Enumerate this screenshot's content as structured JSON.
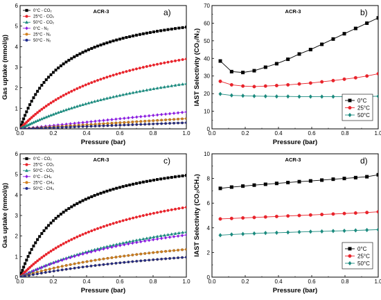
{
  "chart_data": [
    {
      "panel": "a)",
      "type": "scatter",
      "title": "ACR-3",
      "xlabel": "Pressure (bar)",
      "ylabel": "Gas uptake (mmol/g)",
      "xlim": [
        0,
        1
      ],
      "ylim": [
        0,
        6
      ],
      "xticks": [
        "0.0",
        "0.2",
        "0.4",
        "0.6",
        "0.8",
        "1.0"
      ],
      "yticks": [
        "0",
        "1",
        "2",
        "3",
        "4",
        "5",
        "6"
      ],
      "legend_position": "top-left",
      "series": [
        {
          "name": "0°C - CO₂",
          "color": "#000000",
          "marker": "square",
          "model": "langmuir",
          "end_value": 4.95,
          "k": 4.0
        },
        {
          "name": "25°C - CO₂",
          "color": "#e8232b",
          "marker": "circle",
          "model": "langmuir",
          "end_value": 3.4,
          "k": 1.6
        },
        {
          "name": "50°C - CO₂",
          "color": "#1a8a7e",
          "marker": "triangle",
          "model": "langmuir",
          "end_value": 2.2,
          "k": 0.9
        },
        {
          "name": "0°C - N₂",
          "color": "#8a1ce0",
          "marker": "diamond",
          "model": "linear",
          "end_value": 0.82
        },
        {
          "name": "25°C - N₂",
          "color": "#d2801e",
          "marker": "circle",
          "model": "linear",
          "end_value": 0.5
        },
        {
          "name": "50°C - N₂",
          "color": "#1f2a8c",
          "marker": "circle",
          "model": "linear",
          "end_value": 0.3
        }
      ]
    },
    {
      "panel": "b)",
      "type": "line",
      "title": "ACR-3",
      "xlabel": "Pressure (bar)",
      "ylabel": "IAST Selectivity (CO₂/N₂)",
      "xlim": [
        0,
        1
      ],
      "ylim": [
        0,
        70
      ],
      "xticks": [
        "0.0",
        "0.2",
        "0.4",
        "0.6",
        "0.8",
        "1.0"
      ],
      "yticks": [
        "0",
        "10",
        "20",
        "30",
        "40",
        "50",
        "60",
        "70"
      ],
      "legend_position": "bottom-right",
      "x": [
        0.05,
        0.118,
        0.186,
        0.254,
        0.322,
        0.389,
        0.457,
        0.525,
        0.593,
        0.661,
        0.729,
        0.796,
        0.864,
        0.932,
        1.0
      ],
      "series": [
        {
          "name": "0°C",
          "color": "#000000",
          "marker": "square",
          "values": [
            38.5,
            32.5,
            32.0,
            33.0,
            35.0,
            37.0,
            39.5,
            42.5,
            45.0,
            48.0,
            51.0,
            54.0,
            57.0,
            60.0,
            63.0
          ]
        },
        {
          "name": "25°C",
          "color": "#e8232b",
          "marker": "circle",
          "values": [
            27.0,
            25.0,
            24.3,
            24.0,
            24.3,
            24.6,
            25.0,
            25.5,
            26.0,
            26.7,
            27.4,
            28.2,
            29.0,
            30.0,
            31.3
          ]
        },
        {
          "name": "50°C",
          "color": "#1a8a7e",
          "marker": "diamond",
          "values": [
            19.8,
            19.0,
            18.8,
            18.6,
            18.5,
            18.4,
            18.4,
            18.3,
            18.3,
            18.3,
            18.3,
            18.3,
            18.3,
            18.4,
            18.5
          ]
        }
      ]
    },
    {
      "panel": "c)",
      "type": "scatter",
      "title": "ACR-3",
      "xlabel": "Pressure (bar)",
      "ylabel": "Gas uptake (mmol/g)",
      "xlim": [
        0,
        1
      ],
      "ylim": [
        0,
        6
      ],
      "xticks": [
        "0.0",
        "0.2",
        "0.4",
        "0.6",
        "0.8",
        "1.0"
      ],
      "yticks": [
        "0",
        "1",
        "2",
        "3",
        "4",
        "5",
        "6"
      ],
      "legend_position": "top-left",
      "series": [
        {
          "name": "0°C - CO₂",
          "color": "#000000",
          "marker": "square",
          "model": "langmuir",
          "end_value": 4.95,
          "k": 4.0
        },
        {
          "name": "25°C - CO₂",
          "color": "#e8232b",
          "marker": "circle",
          "model": "langmuir",
          "end_value": 3.4,
          "k": 1.6
        },
        {
          "name": "50°C - CO₂",
          "color": "#1a8a7e",
          "marker": "triangle",
          "model": "langmuir",
          "end_value": 2.2,
          "k": 0.9
        },
        {
          "name": "0°C - CH₄",
          "color": "#8a1ce0",
          "marker": "diamond",
          "model": "langmuir",
          "end_value": 2.05,
          "k": 1.0
        },
        {
          "name": "25°C - CH₄",
          "color": "#d2801e",
          "marker": "circle",
          "model": "langmuir",
          "end_value": 1.35,
          "k": 0.9
        },
        {
          "name": "50°C - CH₄",
          "color": "#1f2a8c",
          "marker": "circle",
          "model": "langmuir",
          "end_value": 0.97,
          "k": 0.7
        }
      ]
    },
    {
      "panel": "d)",
      "type": "line",
      "title": "ACR-3",
      "xlabel": "Pressure (bar)",
      "ylabel": "IAST Selectivity (CO₂/CH₄)",
      "xlim": [
        0,
        1
      ],
      "ylim": [
        0,
        10
      ],
      "xticks": [
        "0.0",
        "0.2",
        "0.4",
        "0.6",
        "0.8",
        "1.0"
      ],
      "yticks": [
        "0",
        "2",
        "4",
        "6",
        "8",
        "10"
      ],
      "legend_position": "bottom-right",
      "x": [
        0.05,
        0.118,
        0.186,
        0.254,
        0.322,
        0.389,
        0.457,
        0.525,
        0.593,
        0.661,
        0.729,
        0.796,
        0.864,
        0.932,
        1.0
      ],
      "series": [
        {
          "name": "0°C",
          "color": "#000000",
          "marker": "square",
          "values": [
            7.2,
            7.3,
            7.38,
            7.46,
            7.53,
            7.6,
            7.67,
            7.74,
            7.8,
            7.87,
            7.94,
            8.0,
            8.07,
            8.14,
            8.3
          ]
        },
        {
          "name": "25°C",
          "color": "#e8232b",
          "marker": "circle",
          "values": [
            4.72,
            4.76,
            4.8,
            4.84,
            4.88,
            4.92,
            4.96,
            5.0,
            5.04,
            5.08,
            5.12,
            5.16,
            5.2,
            5.24,
            5.3
          ]
        },
        {
          "name": "50°C",
          "color": "#1a8a7e",
          "marker": "diamond",
          "values": [
            3.4,
            3.46,
            3.5,
            3.54,
            3.58,
            3.6,
            3.63,
            3.66,
            3.69,
            3.71,
            3.74,
            3.76,
            3.79,
            3.82,
            3.85
          ]
        }
      ]
    }
  ]
}
